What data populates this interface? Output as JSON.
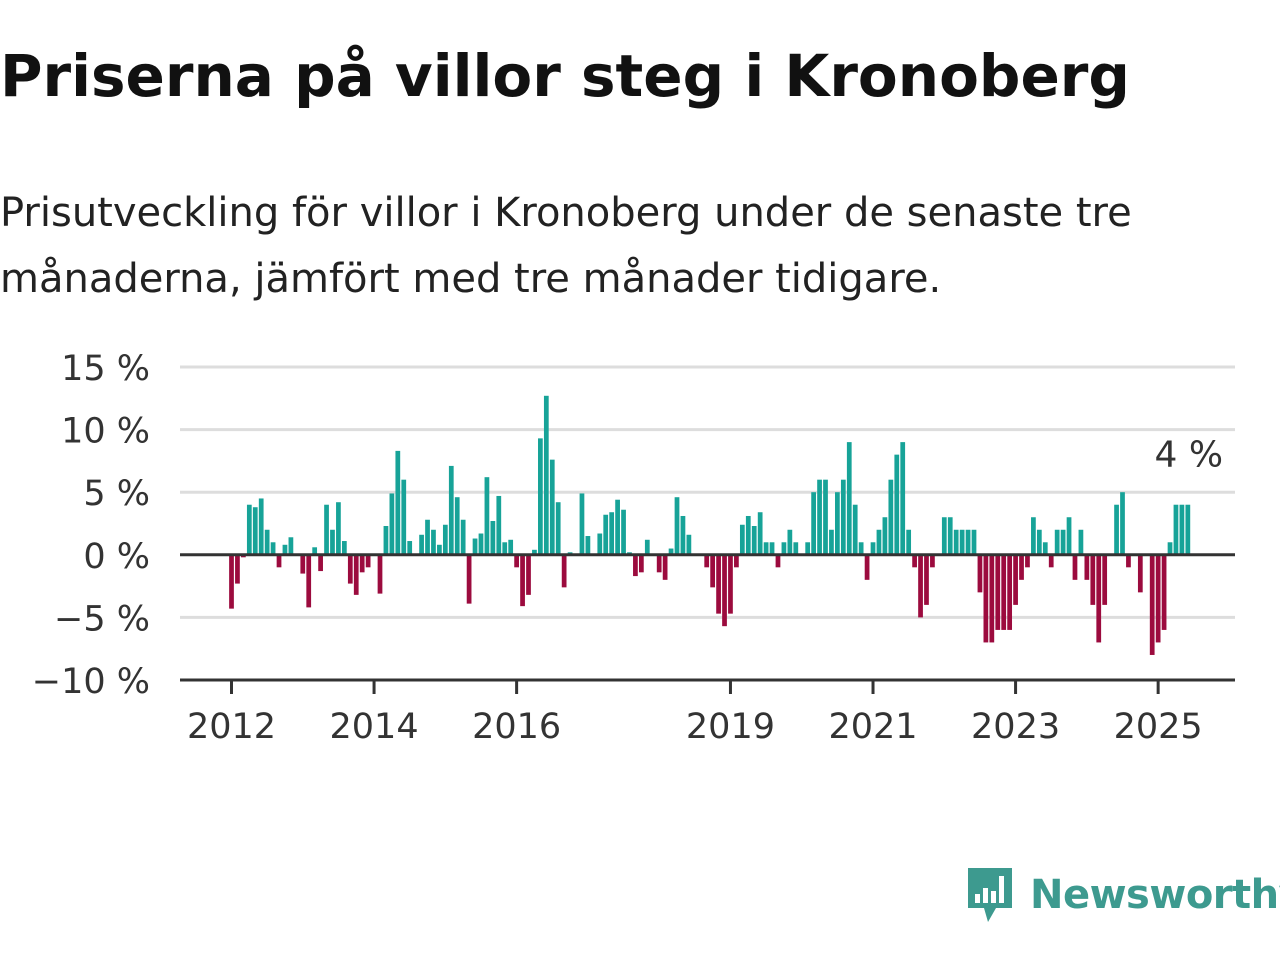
{
  "header": {
    "title": "Priserna på villor steg i Kronoberg",
    "subtitle": "Prisutveckling för villor i Kronoberg under de senaste tre månaderna, jämfört med tre månader tidigare."
  },
  "brand": {
    "name": "Newsworthy",
    "icon": "newsworthy-logo-icon",
    "color": "#3d9a8f"
  },
  "colors": {
    "positive": "#17a398",
    "negative": "#9c0b3e",
    "grid": "#dddddd",
    "axis": "#333333"
  },
  "chart_data": {
    "type": "bar",
    "title": "",
    "xlabel": "",
    "ylabel": "",
    "ylim": [
      -10,
      15
    ],
    "y_ticks": [
      15,
      10,
      5,
      0,
      -5,
      -10
    ],
    "y_tick_labels": [
      "15 %",
      "10 %",
      "5 %",
      "0 %",
      "−5 %",
      "−10 %"
    ],
    "x_tick_labels": [
      "2012",
      "2014",
      "2016",
      "2019",
      "2021",
      "2023",
      "2025"
    ],
    "x_tick_dates": [
      "2012-01",
      "2014-01",
      "2016-01",
      "2019-01",
      "2021-01",
      "2023-01",
      "2025-01"
    ],
    "grid": true,
    "last_value_label": "4 %",
    "series": [
      {
        "dates": [
          "2012-01",
          "2012-02",
          "2012-03",
          "2012-04",
          "2012-05",
          "2012-06",
          "2012-07",
          "2012-08",
          "2012-09",
          "2012-10",
          "2012-11",
          "2012-12",
          "2013-01",
          "2013-02",
          "2013-03",
          "2013-04",
          "2013-05",
          "2013-06",
          "2013-07",
          "2013-08",
          "2013-09",
          "2013-10",
          "2013-11",
          "2013-12",
          "2014-01",
          "2014-02",
          "2014-03",
          "2014-04",
          "2014-05",
          "2014-06",
          "2014-07",
          "2014-08",
          "2014-09",
          "2014-10",
          "2014-11",
          "2014-12",
          "2015-01",
          "2015-02",
          "2015-03",
          "2015-04",
          "2015-05",
          "2015-06",
          "2015-07",
          "2015-08",
          "2015-09",
          "2015-10",
          "2015-11",
          "2015-12",
          "2016-01",
          "2016-02",
          "2016-03",
          "2016-04",
          "2016-05",
          "2016-06",
          "2016-07",
          "2016-08",
          "2016-09",
          "2016-10",
          "2016-11",
          "2016-12",
          "2017-01",
          "2017-02",
          "2017-03",
          "2017-04",
          "2017-05",
          "2017-06",
          "2017-07",
          "2017-08",
          "2017-09",
          "2017-10",
          "2017-11",
          "2017-12",
          "2018-01",
          "2018-02",
          "2018-03",
          "2018-04",
          "2018-05",
          "2018-06",
          "2018-07",
          "2018-08",
          "2018-09",
          "2018-10",
          "2018-11",
          "2018-12",
          "2019-01",
          "2019-02",
          "2019-03",
          "2019-04",
          "2019-05",
          "2019-06",
          "2019-07",
          "2019-08",
          "2019-09",
          "2019-10",
          "2019-11",
          "2019-12",
          "2020-01",
          "2020-02",
          "2020-03",
          "2020-04",
          "2020-05",
          "2020-06",
          "2020-07",
          "2020-08",
          "2020-09",
          "2020-10",
          "2020-11",
          "2020-12",
          "2021-01",
          "2021-02",
          "2021-03",
          "2021-04",
          "2021-05",
          "2021-06",
          "2021-07",
          "2021-08",
          "2021-09",
          "2021-10",
          "2021-11",
          "2021-12",
          "2022-01",
          "2022-02",
          "2022-03",
          "2022-04",
          "2022-05",
          "2022-06",
          "2022-07",
          "2022-08",
          "2022-09",
          "2022-10",
          "2022-11",
          "2022-12",
          "2023-01",
          "2023-02",
          "2023-03",
          "2023-04",
          "2023-05",
          "2023-06",
          "2023-07",
          "2023-08",
          "2023-09",
          "2023-10",
          "2023-11",
          "2023-12",
          "2024-01",
          "2024-02",
          "2024-03",
          "2024-04",
          "2024-05",
          "2024-06",
          "2024-07",
          "2024-08",
          "2024-09",
          "2024-10",
          "2024-11",
          "2024-12",
          "2025-01",
          "2025-02",
          "2025-03",
          "2025-04",
          "2025-05",
          "2025-06"
        ],
        "values": [
          -4.3,
          -2.3,
          -0.2,
          4.0,
          3.8,
          4.5,
          2.0,
          1.0,
          -1.0,
          0.8,
          1.4,
          0.0,
          -1.5,
          -4.2,
          0.6,
          -1.3,
          4.0,
          2.0,
          4.2,
          1.1,
          -2.3,
          -3.2,
          -1.4,
          -1.0,
          0.0,
          -3.1,
          2.3,
          4.9,
          8.3,
          6.0,
          1.1,
          0.0,
          1.6,
          2.8,
          2.0,
          0.8,
          2.4,
          7.1,
          4.6,
          2.8,
          -3.9,
          1.3,
          1.7,
          6.2,
          2.7,
          4.7,
          1.0,
          1.2,
          -1.0,
          -4.1,
          -3.2,
          0.4,
          9.3,
          12.7,
          7.6,
          4.2,
          -2.6,
          0.2,
          0.0,
          4.9,
          1.5,
          0.0,
          1.7,
          3.2,
          3.4,
          4.4,
          3.6,
          0.2,
          -1.7,
          -1.4,
          1.2,
          0.0,
          -1.4,
          -2.0,
          0.5,
          4.6,
          3.1,
          1.6,
          0.1,
          0.0,
          -1.0,
          -2.6,
          -4.7,
          -5.7,
          -4.7,
          -1.0,
          2.4,
          3.1,
          2.3,
          3.4,
          1.0,
          1.0,
          -1.0,
          1.0,
          2.0,
          1.0,
          0.0,
          1.0,
          5.0,
          6.0,
          6.0,
          2.0,
          5.0,
          6.0,
          9.0,
          4.0,
          1.0,
          -2.0,
          1.0,
          2.0,
          3.0,
          6.0,
          8.0,
          9.0,
          2.0,
          -1.0,
          -5.0,
          -4.0,
          -1.0,
          0.0,
          3.0,
          3.0,
          2.0,
          2.0,
          2.0,
          2.0,
          -3.0,
          -7.0,
          -7.0,
          -6.0,
          -6.0,
          -6.0,
          -4.0,
          -2.0,
          -1.0,
          3.0,
          2.0,
          1.0,
          -1.0,
          2.0,
          2.0,
          3.0,
          -2.0,
          2.0,
          -2.0,
          -4.0,
          -7.0,
          -4.0,
          0.0,
          4.0,
          5.0,
          -1.0,
          0.0,
          -3.0,
          0.0,
          -8.0,
          -7.0,
          -6.0,
          1.0,
          4.0,
          4.0,
          4.0
        ]
      }
    ]
  }
}
